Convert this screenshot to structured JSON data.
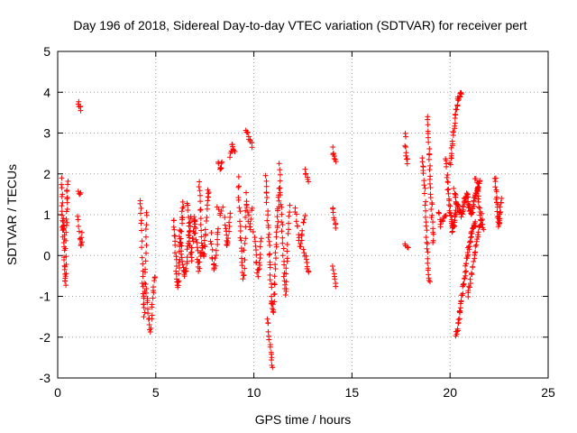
{
  "chart_data": {
    "type": "scatter",
    "title": "Day 196 of 2018, Sidereal Day-to-day VTEC variation (SDTVAR) for receiver pert",
    "xlabel": "GPS time / hours",
    "ylabel": "SDTVAR / TECUs",
    "xlim": [
      0,
      25
    ],
    "ylim": [
      -3,
      5
    ],
    "xticks": [
      0,
      5,
      10,
      15,
      20,
      25
    ],
    "yticks": [
      -3,
      -2,
      -1,
      0,
      1,
      2,
      3,
      4,
      5
    ],
    "xtick_labels": [
      "0",
      "5",
      "10",
      "15",
      "20",
      "25"
    ],
    "ytick_labels": [
      "-3",
      "-2",
      "-1",
      "0",
      "1",
      "2",
      "3",
      "4",
      "5"
    ],
    "grid": true,
    "marker": "+",
    "color": "#ff0000",
    "series": [
      {
        "name": "SDTVAR",
        "segments": [
          {
            "t0": 0.2,
            "t1": 0.5,
            "v": [
              1.9,
              1.2,
              0.5,
              0.9,
              0.2,
              -0.4,
              -0.7,
              0.6,
              1.3,
              1.8
            ],
            "n": 55
          },
          {
            "t0": 1.05,
            "t1": 1.2,
            "v": [
              3.8,
              3.55
            ],
            "n": 6
          },
          {
            "t0": 1.05,
            "t1": 1.2,
            "v": [
              1.6,
              1.5
            ],
            "n": 4
          },
          {
            "t0": 1.05,
            "t1": 1.25,
            "v": [
              1.0,
              0.5,
              0.2,
              0.6
            ],
            "n": 12
          },
          {
            "t0": 4.2,
            "t1": 4.55,
            "v": [
              1.4,
              0.8,
              -0.2,
              -0.9,
              -1.5,
              -0.6,
              0.3,
              1.1
            ],
            "n": 35
          },
          {
            "t0": 4.5,
            "t1": 4.95,
            "v": [
              -0.7,
              -1.3,
              -1.9,
              -1.0,
              -0.5
            ],
            "n": 25
          },
          {
            "t0": 5.9,
            "t1": 6.4,
            "v": [
              0.9,
              0.3,
              -0.5,
              -0.8,
              0.1,
              0.8,
              1.3
            ],
            "n": 40
          },
          {
            "t0": 6.2,
            "t1": 6.8,
            "v": [
              0.6,
              0.1,
              -0.5,
              -0.3,
              0.5,
              0.9
            ],
            "n": 35
          },
          {
            "t0": 6.6,
            "t1": 7.0,
            "v": [
              1.3,
              0.6,
              -0.1,
              0.4,
              0.9
            ],
            "n": 25
          },
          {
            "t0": 6.95,
            "t1": 7.3,
            "v": [
              1.0,
              0.4,
              -0.4,
              0.1
            ],
            "n": 20
          },
          {
            "t0": 7.2,
            "t1": 7.7,
            "v": [
              1.8,
              1.1,
              0.3,
              0.0,
              0.5,
              1.3,
              1.6
            ],
            "n": 35
          },
          {
            "t0": 7.8,
            "t1": 8.2,
            "v": [
              0.5,
              -0.1,
              -0.4,
              0.2,
              0.7
            ],
            "n": 20
          },
          {
            "t0": 8.2,
            "t1": 8.4,
            "v": [
              2.3,
              2.1,
              2.25
            ],
            "n": 8
          },
          {
            "t0": 8.15,
            "t1": 8.4,
            "v": [
              1.2,
              1.0,
              1.15
            ],
            "n": 6
          },
          {
            "t0": 8.5,
            "t1": 8.8,
            "v": [
              0.9,
              0.5,
              0.2,
              0.6,
              1.0
            ],
            "n": 16
          },
          {
            "t0": 8.8,
            "t1": 9.0,
            "v": [
              2.4,
              2.7,
              2.55
            ],
            "n": 10
          },
          {
            "t0": 9.2,
            "t1": 9.6,
            "v": [
              1.9,
              1.2,
              0.5,
              -0.1,
              -0.6,
              0.3,
              1.3
            ],
            "n": 30
          },
          {
            "t0": 9.6,
            "t1": 9.9,
            "v": [
              3.1,
              2.9,
              2.7
            ],
            "n": 10
          },
          {
            "t0": 9.6,
            "t1": 9.9,
            "v": [
              1.5,
              1.0,
              0.6,
              1.2
            ],
            "n": 14
          },
          {
            "t0": 10.0,
            "t1": 10.4,
            "v": [
              0.6,
              0.0,
              -0.5,
              -0.1,
              0.4
            ],
            "n": 20
          },
          {
            "t0": 10.6,
            "t1": 11.3,
            "v": [
              1.9,
              1.2,
              0.4,
              -0.3,
              -1.1,
              -1.4,
              -0.6,
              0.3,
              1.0,
              1.6
            ],
            "n": 60
          },
          {
            "t0": 10.7,
            "t1": 10.95,
            "v": [
              -1.5,
              -2.2,
              -2.8
            ],
            "n": 14
          },
          {
            "t0": 11.3,
            "t1": 11.8,
            "v": [
              2.2,
              1.6,
              0.9,
              0.2,
              -0.5,
              -1.0,
              -0.3,
              0.5,
              1.2
            ],
            "n": 40
          },
          {
            "t0": 12.1,
            "t1": 12.6,
            "v": [
              1.2,
              0.7,
              0.2,
              0.6,
              1.0
            ],
            "n": 20
          },
          {
            "t0": 12.6,
            "t1": 12.8,
            "v": [
              2.1,
              1.8
            ],
            "n": 6
          },
          {
            "t0": 12.55,
            "t1": 12.8,
            "v": [
              0.2,
              -0.2,
              -0.4
            ],
            "n": 10
          },
          {
            "t0": 14.0,
            "t1": 14.2,
            "v": [
              2.6,
              2.3
            ],
            "n": 8
          },
          {
            "t0": 14.0,
            "t1": 14.2,
            "v": [
              1.2,
              0.9,
              0.7
            ],
            "n": 8
          },
          {
            "t0": 14.0,
            "t1": 14.2,
            "v": [
              -0.3,
              -0.5,
              -0.7
            ],
            "n": 7
          },
          {
            "t0": 17.7,
            "t1": 17.85,
            "v": [
              3.0,
              2.4,
              2.3
            ],
            "n": 10
          },
          {
            "t0": 17.7,
            "t1": 17.85,
            "v": [
              0.3,
              0.2
            ],
            "n": 4
          },
          {
            "t0": 18.6,
            "t1": 18.95,
            "v": [
              2.4,
              2.0,
              1.4,
              0.8,
              0.2,
              -0.3,
              -0.7
            ],
            "n": 30
          },
          {
            "t0": 18.85,
            "t1": 19.15,
            "v": [
              3.4,
              2.8,
              2.1,
              1.5,
              0.9,
              0.3
            ],
            "n": 30
          },
          {
            "t0": 19.4,
            "t1": 19.8,
            "v": [
              1.1,
              0.7,
              0.9,
              1.0
            ],
            "n": 12
          },
          {
            "t0": 19.8,
            "t1": 20.3,
            "v": [
              2.4,
              1.8,
              1.2,
              0.9,
              0.6,
              0.8,
              1.1
            ],
            "n": 40
          },
          {
            "t0": 20.0,
            "t1": 20.55,
            "v": [
              2.2,
              2.8,
              3.4,
              3.8,
              4.0
            ],
            "n": 35
          },
          {
            "t0": 20.2,
            "t1": 21.5,
            "v": [
              1.6,
              1.3,
              1.1,
              1.0,
              1.3,
              1.5,
              1.2,
              1.0,
              1.4,
              1.6,
              1.8
            ],
            "n": 90
          },
          {
            "t0": 20.3,
            "t1": 21.3,
            "v": [
              -2.0,
              -1.5,
              -0.9,
              -0.3,
              0.2,
              0.6,
              0.8
            ],
            "n": 60
          },
          {
            "t0": 20.9,
            "t1": 21.6,
            "v": [
              -1.0,
              -0.6,
              -0.2,
              0.2,
              0.6,
              0.9
            ],
            "n": 30
          },
          {
            "t0": 21.3,
            "t1": 21.7,
            "v": [
              1.9,
              1.2,
              0.6
            ],
            "n": 20
          },
          {
            "t0": 22.3,
            "t1": 22.6,
            "v": [
              1.9,
              1.5,
              1.1,
              0.7,
              1.0,
              1.4
            ],
            "n": 30
          }
        ]
      }
    ]
  }
}
